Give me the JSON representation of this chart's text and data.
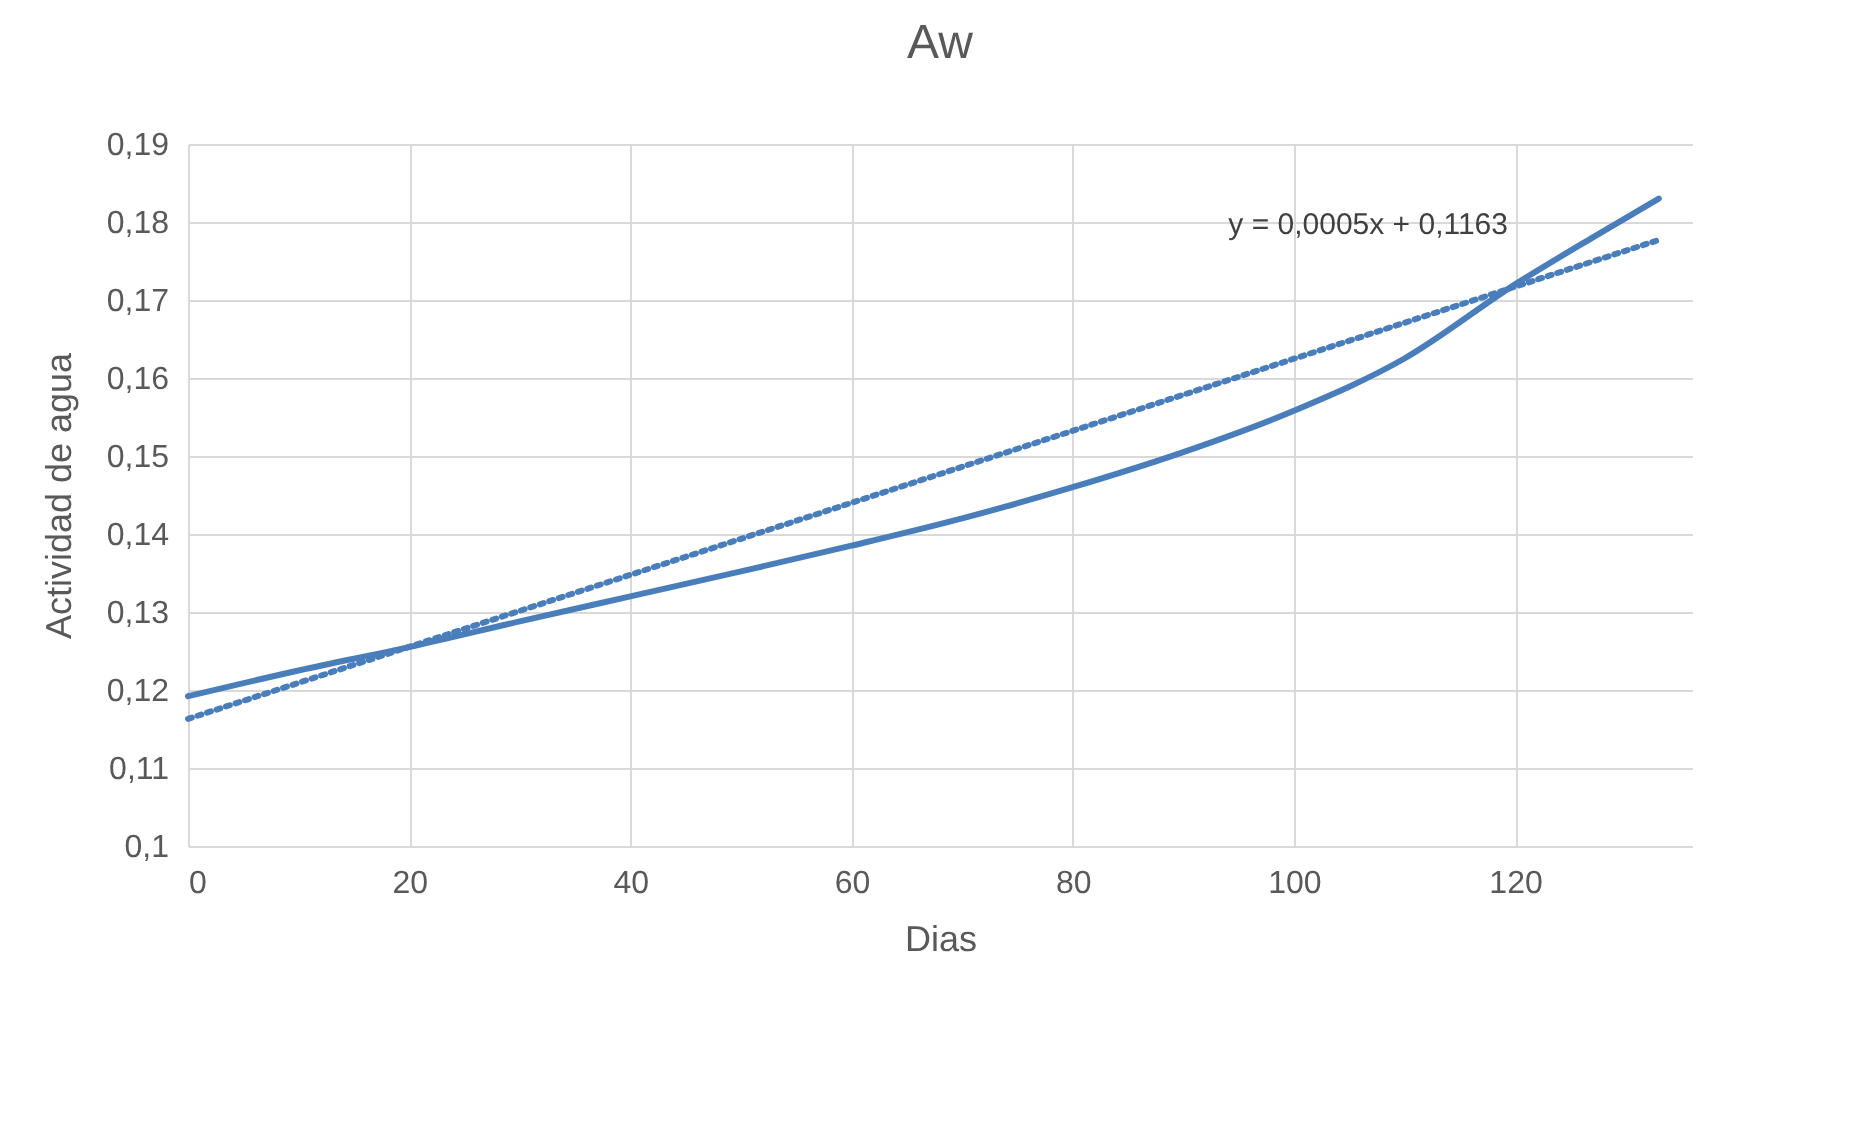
{
  "chart_data": {
    "type": "line",
    "title": "Aw",
    "xlabel": "Dias",
    "ylabel": "Actividad de agua",
    "xlim": [
      0,
      136
    ],
    "xticks": [
      0,
      20,
      40,
      60,
      80,
      100,
      120
    ],
    "ylim": [
      0.1,
      0.19
    ],
    "yticks": [
      {
        "value": 0.1,
        "label": "0,1"
      },
      {
        "value": 0.11,
        "label": "0,11"
      },
      {
        "value": 0.12,
        "label": "0,12"
      },
      {
        "value": 0.13,
        "label": "0,13"
      },
      {
        "value": 0.14,
        "label": "0,14"
      },
      {
        "value": 0.15,
        "label": "0,15"
      },
      {
        "value": 0.16,
        "label": "0,16"
      },
      {
        "value": 0.17,
        "label": "0,17"
      },
      {
        "value": 0.18,
        "label": "0,18"
      },
      {
        "value": 0.19,
        "label": "0,19"
      }
    ],
    "grid": true,
    "legend": false,
    "marker": "none",
    "series": [
      {
        "type": "line",
        "color": "#4a7ebb",
        "line_style": "solid",
        "x": [
          0,
          10,
          20,
          30,
          40,
          50,
          60,
          70,
          80,
          90,
          100,
          110,
          120,
          127,
          133
        ],
        "values": [
          0.1192,
          0.1225,
          0.1255,
          0.1288,
          0.132,
          0.1352,
          0.1385,
          0.142,
          0.146,
          0.1505,
          0.1558,
          0.1625,
          0.172,
          0.178,
          0.183
        ]
      },
      {
        "type": "line",
        "color": "#4a7ebb",
        "line_style": "dotted",
        "x": [
          0,
          133
        ],
        "values": [
          0.1163,
          0.1777
        ]
      }
    ],
    "annotations": [
      "y = 0,0005x + 0,1163"
    ]
  }
}
